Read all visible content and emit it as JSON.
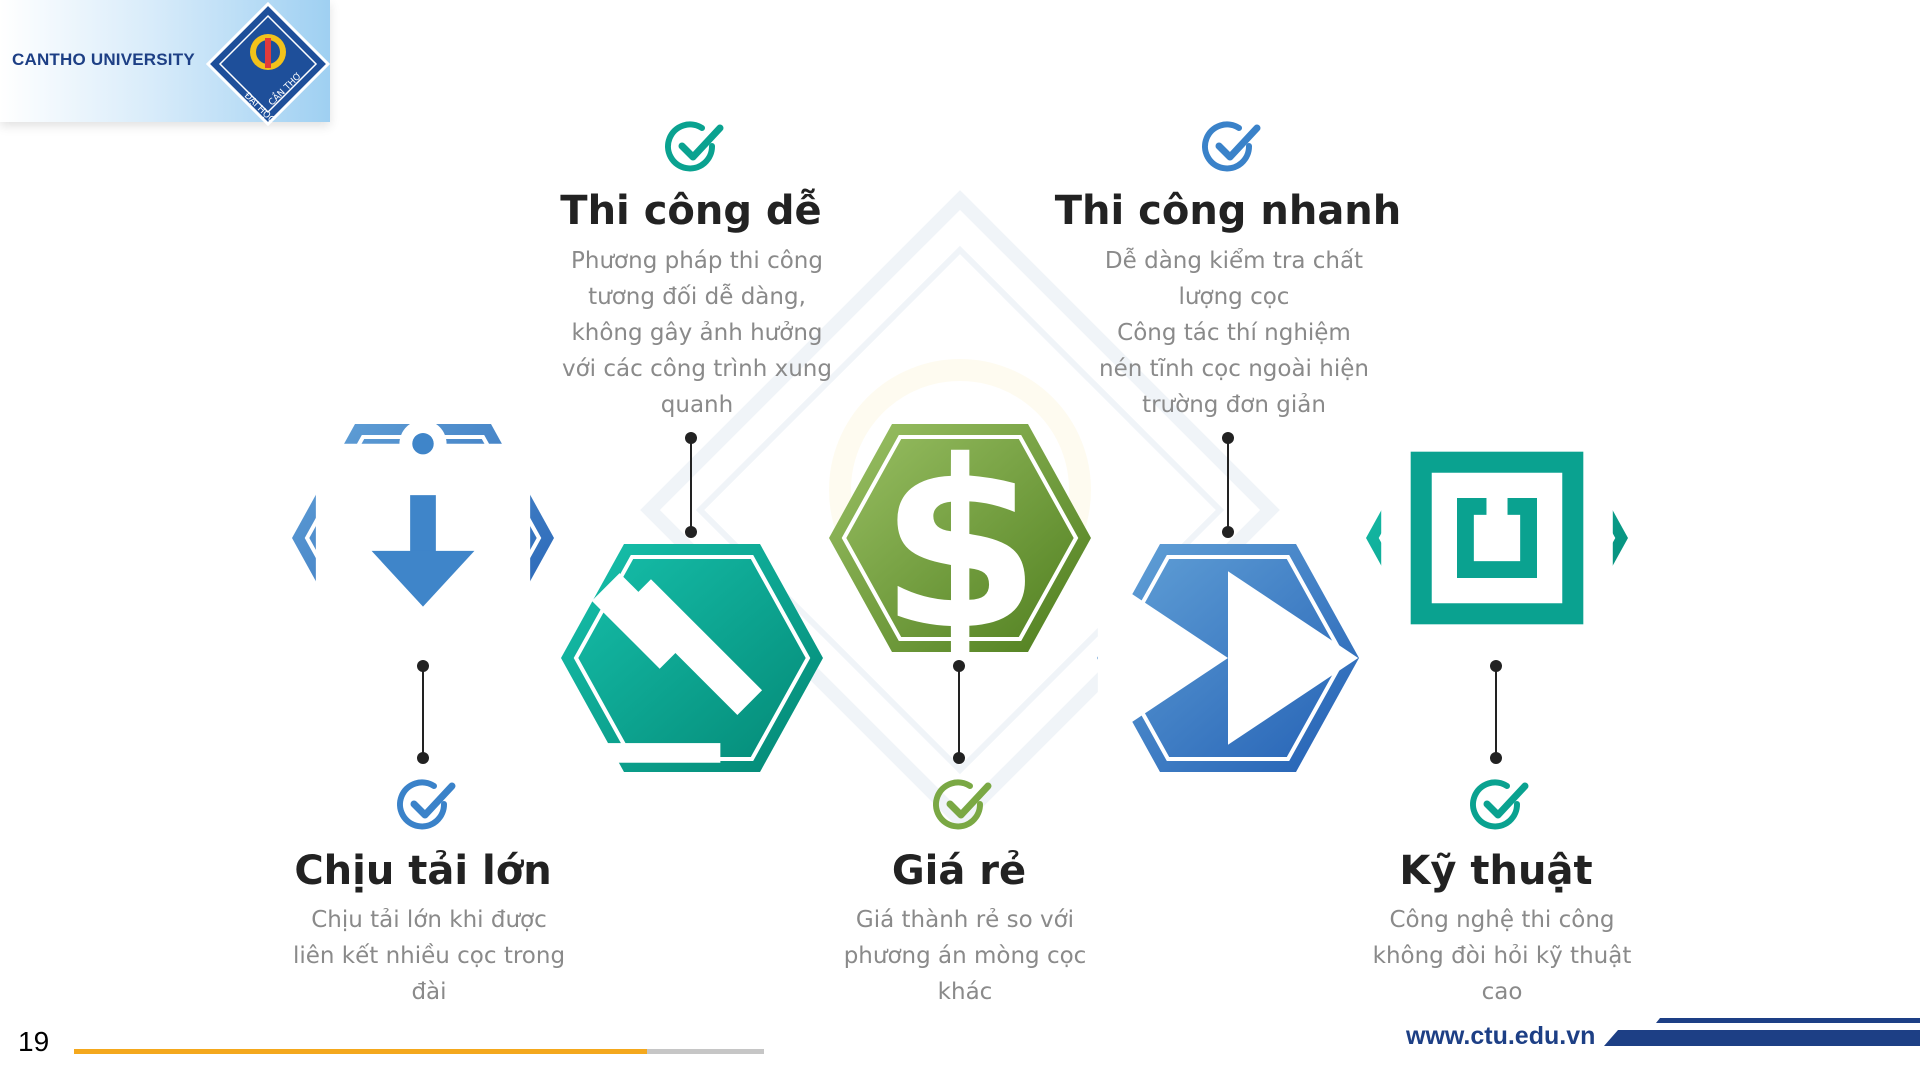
{
  "header": {
    "brand": "CANTHO UNIVERSITY",
    "logo_text": "ĐẠI HỌC CẦN THƠ"
  },
  "features": [
    {
      "title": "Chịu tải lớn",
      "description": "Chịu tải lớn khi được\nliên kết nhiều cọc trong\nđài",
      "icon": "clipboard-download-icon",
      "color": "blue"
    },
    {
      "title": "Thi công dễ",
      "description": "Phương pháp thi công\ntương đối dễ dàng,\nkhông gây ảnh hưởng\nvới các công trình xung\nquanh",
      "icon": "gavel-icon",
      "color": "teal"
    },
    {
      "title": "Giá rẻ",
      "description": "Giá thành rẻ so với\nphương án mòng cọc\nkhác",
      "icon": "dollar-icon",
      "color": "green"
    },
    {
      "title": "Thi công nhanh",
      "description": "Dễ dàng kiểm tra chất\nlượng cọc\nCông tác thí nghiệm\nnén tĩnh cọc ngoài hiện\ntrường đơn giản",
      "icon": "fast-forward-icon",
      "color": "blue"
    },
    {
      "title": "Kỹ thuật",
      "description": "Công nghệ thi công\nkhông đòi hỏi kỹ thuật\ncao",
      "icon": "technology-chip-icon",
      "color": "teal"
    }
  ],
  "colors": {
    "blue": "#2e72bd",
    "teal": "#0aa290",
    "green": "#6a9b2e",
    "accent_orange": "#f4a81d",
    "navy": "#1d3f85"
  },
  "footer": {
    "page_number": "19",
    "progress": 0.83,
    "website": "www.ctu.edu.vn"
  }
}
